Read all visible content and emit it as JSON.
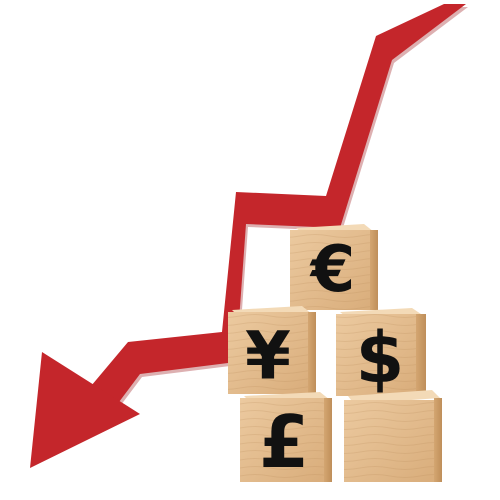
{
  "scene": {
    "background": "#ffffff",
    "arrow": {
      "color": "#c4262b",
      "shadow": "#9e1c20",
      "direction": "down-left",
      "meaning": "falling trend"
    },
    "wood": {
      "top": "#f0d2a8",
      "front": "#e2b887",
      "side": "#c99a63",
      "grain": "#b88a55"
    },
    "blocks": [
      {
        "symbol": "€",
        "name": "euro"
      },
      {
        "symbol": "¥",
        "name": "yen"
      },
      {
        "symbol": "$",
        "name": "dollar"
      },
      {
        "symbol": "£",
        "name": "pound"
      },
      {
        "symbol": "",
        "name": "blank"
      }
    ]
  }
}
